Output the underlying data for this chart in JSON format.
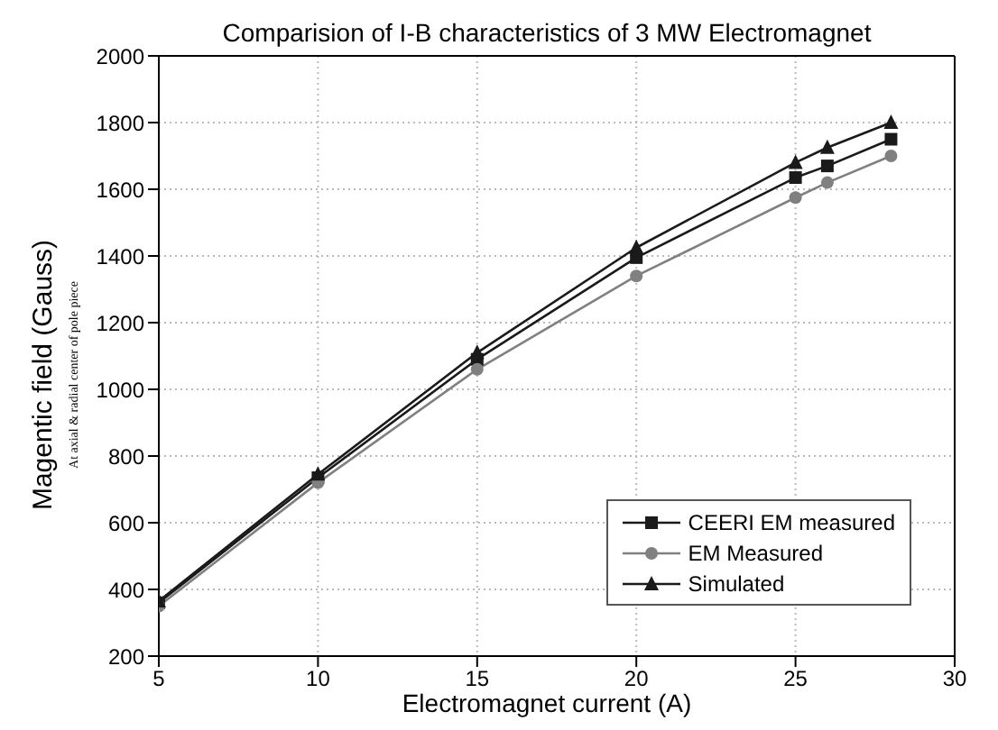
{
  "chart_data": {
    "type": "line",
    "title": "Comparision of I-B characteristics of 3 MW Electromagnet",
    "xlabel": "Electromagnet current (A)",
    "ylabel": "Magentic field (Gauss)",
    "annotations": [
      "At axial & radial center of pole piece"
    ],
    "x": [
      5,
      10,
      15,
      20,
      25,
      26,
      28
    ],
    "series": [
      {
        "name": "CEERI EM measured",
        "color": "#1a1a1a",
        "marker": "square",
        "values": [
          360,
          735,
          1090,
          1395,
          1635,
          1670,
          1750
        ]
      },
      {
        "name": "EM Measured",
        "color": "#808080",
        "marker": "circle",
        "values": [
          350,
          720,
          1060,
          1340,
          1575,
          1620,
          1700
        ]
      },
      {
        "name": "Simulated",
        "color": "#1a1a1a",
        "marker": "triangle",
        "values": [
          365,
          745,
          1110,
          1425,
          1680,
          1725,
          1800
        ]
      }
    ],
    "xlim": [
      5,
      30
    ],
    "xticks": [
      5,
      10,
      15,
      20,
      25,
      30
    ],
    "ylim": [
      200,
      2000
    ],
    "yticks": [
      200,
      400,
      600,
      800,
      1000,
      1200,
      1400,
      1600,
      1800,
      2000
    ],
    "grid": true,
    "legend": "bottom right",
    "line_style": "solid"
  }
}
